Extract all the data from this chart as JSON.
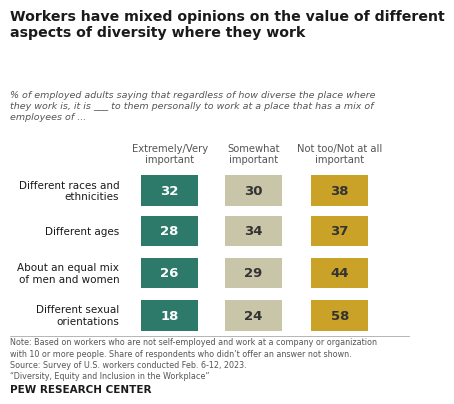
{
  "title": "Workers have mixed opinions on the value of different\naspects of diversity where they work",
  "subtitle": "% of employed adults saying that regardless of how diverse the place where\nthey work is, it is ___ to them personally to work at a place that has a mix of\nemployees of ...",
  "categories": [
    "Different races and\nethnicities",
    "Different ages",
    "About an equal mix\nof men and women",
    "Different sexual\norientations"
  ],
  "col_headers": [
    "Extremely/Very\nimportant",
    "Somewhat\nimportant",
    "Not too/Not at all\nimportant"
  ],
  "values": [
    [
      32,
      30,
      38
    ],
    [
      28,
      34,
      37
    ],
    [
      26,
      29,
      44
    ],
    [
      18,
      24,
      58
    ]
  ],
  "colors": [
    "#2d7a6b",
    "#c9c5a8",
    "#c9a227"
  ],
  "text_colors": [
    "#ffffff",
    "#333333",
    "#333333"
  ],
  "note": "Note: Based on workers who are not self-employed and work at a company or organization\nwith 10 or more people. Share of respondents who didn’t offer an answer not shown.\nSource: Survey of U.S. workers conducted Feb. 6-12, 2023.\n“Diversity, Equity and Inclusion in the Workplace”",
  "footer": "PEW RESEARCH CENTER",
  "background_color": "#ffffff",
  "title_color": "#1a1a1a",
  "subtitle_color": "#555555",
  "header_color": "#555555"
}
